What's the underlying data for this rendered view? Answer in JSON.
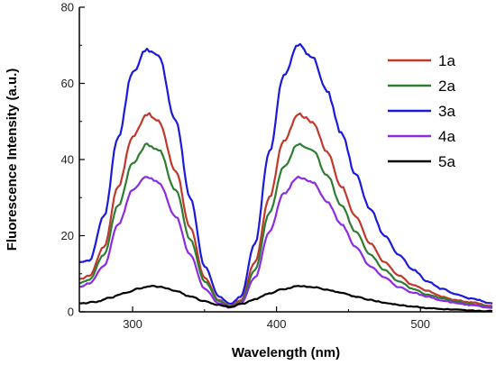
{
  "chart_data": {
    "type": "line",
    "title": "",
    "xlabel": "Wavelength (nm)",
    "ylabel": "Fluorescence Intensity (a.u.)",
    "xlim": [
      263,
      550
    ],
    "ylim": [
      0,
      80
    ],
    "x_ticks": [
      300,
      400,
      500
    ],
    "y_ticks": [
      0,
      20,
      40,
      60,
      80
    ],
    "grid": false,
    "legend_position": "top-right",
    "series": [
      {
        "name": "1a",
        "color": "#c0392b",
        "points": [
          [
            263,
            8.5
          ],
          [
            270,
            9.5
          ],
          [
            280,
            17
          ],
          [
            290,
            33
          ],
          [
            300,
            46
          ],
          [
            310,
            52
          ],
          [
            318,
            50
          ],
          [
            330,
            37
          ],
          [
            340,
            22
          ],
          [
            350,
            9
          ],
          [
            360,
            3
          ],
          [
            368,
            1.5
          ],
          [
            375,
            3
          ],
          [
            385,
            13
          ],
          [
            395,
            30
          ],
          [
            405,
            45
          ],
          [
            415,
            52
          ],
          [
            425,
            50
          ],
          [
            435,
            42
          ],
          [
            445,
            33
          ],
          [
            455,
            25
          ],
          [
            465,
            18
          ],
          [
            475,
            13
          ],
          [
            485,
            9.5
          ],
          [
            495,
            7
          ],
          [
            505,
            5.5
          ],
          [
            515,
            4
          ],
          [
            525,
            3
          ],
          [
            535,
            2.5
          ],
          [
            550,
            1.5
          ]
        ]
      },
      {
        "name": "2a",
        "color": "#2e7d32",
        "points": [
          [
            263,
            7.5
          ],
          [
            270,
            8.5
          ],
          [
            280,
            15
          ],
          [
            290,
            28
          ],
          [
            300,
            39
          ],
          [
            310,
            44
          ],
          [
            318,
            42.5
          ],
          [
            330,
            32
          ],
          [
            340,
            19
          ],
          [
            350,
            8
          ],
          [
            360,
            2.8
          ],
          [
            368,
            1.3
          ],
          [
            375,
            2.5
          ],
          [
            385,
            11
          ],
          [
            395,
            26
          ],
          [
            405,
            38
          ],
          [
            415,
            44
          ],
          [
            425,
            42.5
          ],
          [
            435,
            36
          ],
          [
            445,
            28
          ],
          [
            455,
            21
          ],
          [
            465,
            15
          ],
          [
            475,
            11
          ],
          [
            485,
            8
          ],
          [
            495,
            6
          ],
          [
            505,
            4.5
          ],
          [
            515,
            3.5
          ],
          [
            525,
            2.7
          ],
          [
            535,
            2
          ],
          [
            550,
            1.2
          ]
        ]
      },
      {
        "name": "3a",
        "color": "#1a1adb",
        "points": [
          [
            263,
            13
          ],
          [
            270,
            13.5
          ],
          [
            280,
            25
          ],
          [
            290,
            46
          ],
          [
            300,
            63
          ],
          [
            310,
            69
          ],
          [
            318,
            67
          ],
          [
            330,
            50
          ],
          [
            340,
            30
          ],
          [
            350,
            12
          ],
          [
            360,
            4
          ],
          [
            368,
            2
          ],
          [
            375,
            4
          ],
          [
            385,
            18
          ],
          [
            395,
            42
          ],
          [
            405,
            62
          ],
          [
            415,
            70
          ],
          [
            425,
            67
          ],
          [
            435,
            58
          ],
          [
            445,
            47
          ],
          [
            455,
            36
          ],
          [
            465,
            27
          ],
          [
            475,
            20
          ],
          [
            485,
            15
          ],
          [
            495,
            11
          ],
          [
            505,
            8
          ],
          [
            515,
            6
          ],
          [
            525,
            4.5
          ],
          [
            535,
            3.5
          ],
          [
            550,
            2.2
          ]
        ]
      },
      {
        "name": "4a",
        "color": "#8b2be2",
        "points": [
          [
            263,
            6.5
          ],
          [
            270,
            7.5
          ],
          [
            280,
            12
          ],
          [
            290,
            23
          ],
          [
            300,
            32
          ],
          [
            310,
            35.5
          ],
          [
            318,
            34
          ],
          [
            330,
            25
          ],
          [
            340,
            15
          ],
          [
            350,
            6
          ],
          [
            360,
            2.3
          ],
          [
            368,
            1.1
          ],
          [
            375,
            2.2
          ],
          [
            385,
            9
          ],
          [
            395,
            21
          ],
          [
            405,
            31
          ],
          [
            415,
            35.5
          ],
          [
            425,
            34
          ],
          [
            435,
            29
          ],
          [
            445,
            23
          ],
          [
            455,
            17
          ],
          [
            465,
            12
          ],
          [
            475,
            9
          ],
          [
            485,
            6.5
          ],
          [
            495,
            5
          ],
          [
            505,
            4
          ],
          [
            515,
            3
          ],
          [
            525,
            2.3
          ],
          [
            535,
            1.7
          ],
          [
            550,
            1
          ]
        ]
      },
      {
        "name": "5a",
        "color": "#000000",
        "points": [
          [
            263,
            2.2
          ],
          [
            275,
            2.6
          ],
          [
            285,
            3.8
          ],
          [
            295,
            5
          ],
          [
            305,
            6.2
          ],
          [
            312,
            6.8
          ],
          [
            320,
            6.5
          ],
          [
            330,
            5.5
          ],
          [
            340,
            4
          ],
          [
            350,
            2.8
          ],
          [
            360,
            1.8
          ],
          [
            368,
            1.3
          ],
          [
            375,
            2
          ],
          [
            385,
            3.3
          ],
          [
            395,
            4.8
          ],
          [
            405,
            6
          ],
          [
            415,
            6.8
          ],
          [
            425,
            6.5
          ],
          [
            435,
            5.8
          ],
          [
            445,
            5
          ],
          [
            455,
            4
          ],
          [
            465,
            3.1
          ],
          [
            475,
            2.4
          ],
          [
            485,
            1.8
          ],
          [
            495,
            1.4
          ],
          [
            505,
            1
          ],
          [
            515,
            0.7
          ],
          [
            525,
            0.5
          ],
          [
            535,
            0.3
          ],
          [
            550,
            0.2
          ]
        ]
      }
    ]
  }
}
